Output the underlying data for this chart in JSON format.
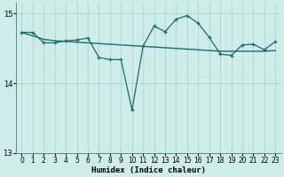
{
  "xlabel": "Humidex (Indice chaleur)",
  "background_color": "#ceecea",
  "grid_color": "#b0d8d4",
  "line_color": "#1a6b6b",
  "x_values": [
    0,
    1,
    2,
    3,
    4,
    5,
    6,
    7,
    8,
    9,
    10,
    11,
    12,
    13,
    14,
    15,
    16,
    17,
    18,
    19,
    20,
    21,
    22,
    23
  ],
  "y_main": [
    14.73,
    14.73,
    14.58,
    14.58,
    14.61,
    14.62,
    14.65,
    14.37,
    14.34,
    14.34,
    13.62,
    14.53,
    14.82,
    14.74,
    14.92,
    14.97,
    14.86,
    14.66,
    14.42,
    14.4,
    14.55,
    14.56,
    14.48,
    14.6
  ],
  "y_trend": [
    14.73,
    14.68,
    14.63,
    14.61,
    14.6,
    14.59,
    14.58,
    14.57,
    14.56,
    14.55,
    14.54,
    14.53,
    14.52,
    14.51,
    14.5,
    14.49,
    14.48,
    14.47,
    14.46,
    14.46,
    14.46,
    14.46,
    14.46,
    14.47
  ],
  "ylim": [
    13.0,
    15.15
  ],
  "yticks": [
    13,
    14,
    15
  ],
  "xticks": [
    0,
    1,
    2,
    3,
    4,
    5,
    6,
    7,
    8,
    9,
    10,
    11,
    12,
    13,
    14,
    15,
    16,
    17,
    18,
    19,
    20,
    21,
    22,
    23
  ],
  "tick_fontsize": 5.5,
  "label_fontsize": 6.5
}
